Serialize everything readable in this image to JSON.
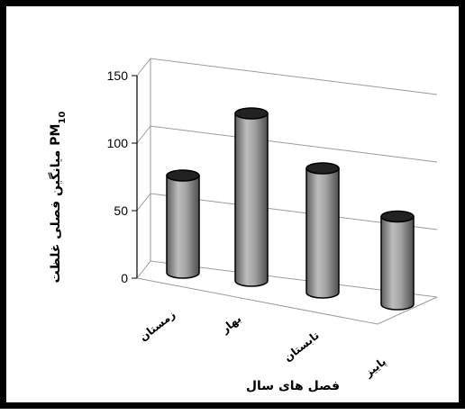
{
  "chart_data": {
    "type": "bar",
    "style": "3d-cylinder",
    "categories": [
      "زمستان",
      "بهار",
      "تابستان",
      "پاییز"
    ],
    "values": [
      72,
      124,
      92,
      65
    ],
    "yticks": [
      "0",
      "50",
      "100",
      "150"
    ],
    "ylim": [
      0,
      150
    ],
    "xlabel": "فصل های سال",
    "ylabel_main": "میانگین فصلی غلظت PM",
    "ylabel_sub": "10",
    "grid": true,
    "legend": "none",
    "colors": {
      "bar": "#9a9a9a",
      "bar_top": "#222222",
      "grid": "#9a9a9a",
      "frame": "#000000"
    }
  }
}
